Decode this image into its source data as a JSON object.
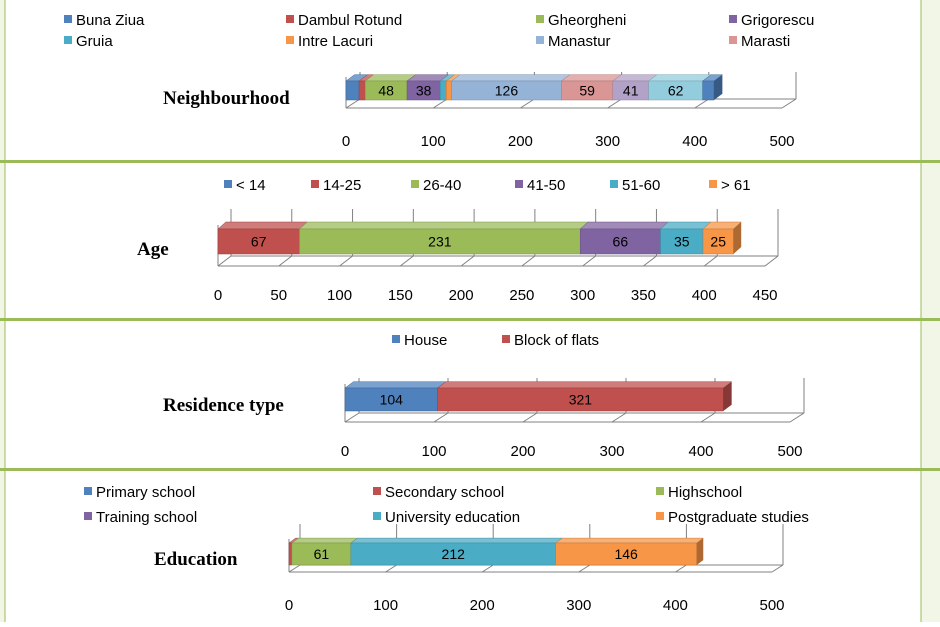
{
  "colors": {
    "panel_border": "#9bbb59",
    "grid": "#808080"
  },
  "chart_data": [
    {
      "type": "bar",
      "orientation": "horizontal-stacked-3d",
      "title": "",
      "category": "Neighbourhood",
      "xlim": [
        0,
        500
      ],
      "ticks": [
        0,
        100,
        200,
        300,
        400,
        500
      ],
      "legend_position": "top",
      "series": [
        {
          "name": "Buna Ziua",
          "value": 15,
          "color": "#4f81bd",
          "label": ""
        },
        {
          "name": "Dambul Rotund",
          "value": 7,
          "color": "#c0504d",
          "label": ""
        },
        {
          "name": "Gheorgheni",
          "value": 48,
          "color": "#9bbb59",
          "label": "48"
        },
        {
          "name": "Grigorescu",
          "value": 38,
          "color": "#8064a2",
          "label": "38"
        },
        {
          "name": "Gruia",
          "value": 7,
          "color": "#4bacc6",
          "label": ""
        },
        {
          "name": "Intre Lacuri",
          "value": 6,
          "color": "#f79646",
          "label": ""
        },
        {
          "name": "Manastur",
          "value": 126,
          "color": "#95b3d7",
          "label": "126"
        },
        {
          "name": "Marasti",
          "value": 59,
          "color": "#da9694",
          "label": "59"
        },
        {
          "name": "",
          "value": 41,
          "color": "#b3a2c7",
          "label": "41"
        },
        {
          "name": "",
          "value": 62,
          "color": "#93cddd",
          "label": "62"
        },
        {
          "name": "",
          "value": 13,
          "color": "#4f81bd",
          "label": ""
        }
      ]
    },
    {
      "type": "bar",
      "orientation": "horizontal-stacked-3d",
      "title": "",
      "category": "Age",
      "xlim": [
        0,
        450
      ],
      "ticks": [
        0,
        50,
        100,
        150,
        200,
        250,
        300,
        350,
        400,
        450
      ],
      "legend_position": "top",
      "series": [
        {
          "name": "< 14",
          "value": 0,
          "color": "#4f81bd",
          "label": ""
        },
        {
          "name": "14-25",
          "value": 67,
          "color": "#c0504d",
          "label": "67"
        },
        {
          "name": "26-40",
          "value": 231,
          "color": "#9bbb59",
          "label": "231"
        },
        {
          "name": "41-50",
          "value": 66,
          "color": "#8064a2",
          "label": "66"
        },
        {
          "name": "51-60",
          "value": 35,
          "color": "#4bacc6",
          "label": "35"
        },
        {
          "name": "> 61",
          "value": 25,
          "color": "#f79646",
          "label": "25"
        }
      ]
    },
    {
      "type": "bar",
      "orientation": "horizontal-stacked-3d",
      "title": "",
      "category": "Residence type",
      "xlim": [
        0,
        500
      ],
      "ticks": [
        0,
        100,
        200,
        300,
        400,
        500
      ],
      "legend_position": "top",
      "series": [
        {
          "name": "House",
          "value": 104,
          "color": "#4f81bd",
          "label": "104"
        },
        {
          "name": "Block of flats",
          "value": 321,
          "color": "#c0504d",
          "label": "321"
        }
      ]
    },
    {
      "type": "bar",
      "orientation": "horizontal-stacked-3d",
      "title": "",
      "category": "Education",
      "xlim": [
        0,
        500
      ],
      "ticks": [
        0,
        100,
        200,
        300,
        400,
        500
      ],
      "legend_position": "top",
      "series": [
        {
          "name": "Primary school",
          "value": 0,
          "color": "#4f81bd",
          "label": ""
        },
        {
          "name": "Secondary school",
          "value": 3,
          "color": "#c0504d",
          "label": ""
        },
        {
          "name": "Highschool",
          "value": 61,
          "color": "#9bbb59",
          "label": "61"
        },
        {
          "name": "Training school",
          "value": 0,
          "color": "#8064a2",
          "label": ""
        },
        {
          "name": "University education",
          "value": 212,
          "color": "#4bacc6",
          "label": "212"
        },
        {
          "name": "Postgraduate studies",
          "value": 146,
          "color": "#f79646",
          "label": "146"
        }
      ]
    }
  ]
}
